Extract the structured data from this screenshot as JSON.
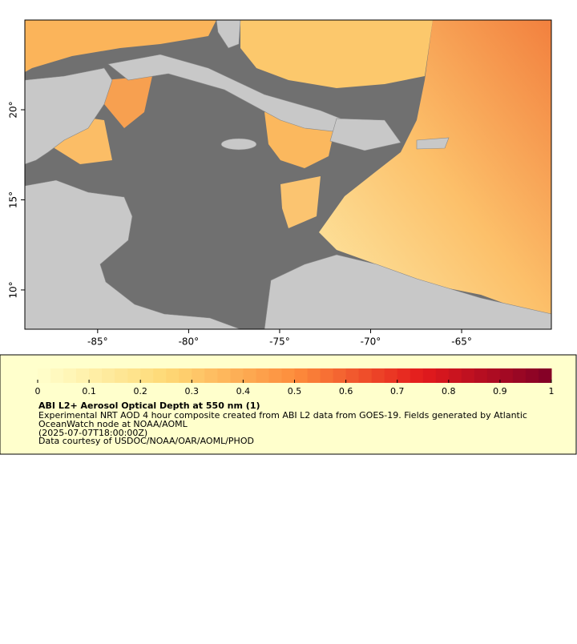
{
  "map": {
    "xlim": [
      -89,
      -60.07
    ],
    "ylim": [
      7.82,
      24.98
    ],
    "xticks": [
      {
        "value": -85,
        "label": "-85°"
      },
      {
        "value": -80,
        "label": "-80°"
      },
      {
        "value": -75,
        "label": "-75°"
      },
      {
        "value": -70,
        "label": "-70°"
      },
      {
        "value": -65,
        "label": "-65°"
      }
    ],
    "yticks": [
      {
        "value": 10,
        "label": "10°"
      },
      {
        "value": 15,
        "label": "15°"
      },
      {
        "value": 20,
        "label": "20°"
      }
    ]
  },
  "colorbar": {
    "lim": [
      0,
      1
    ],
    "ticks": [
      0,
      0.1,
      0.2,
      0.3,
      0.4,
      0.5,
      0.6,
      0.7,
      0.8,
      0.9,
      1
    ]
  },
  "legend": {
    "title": "ABI L2+ Aerosol Optical Depth at 550 nm (1)",
    "lines": [
      "Experimental NRT AOD 4 hour composite created from ABI L2 data from GOES-19. Fields generated by Atlantic",
      "OceanWatch node at NOAA/AOML",
      "(2025-07-07T18:00:00Z)",
      "Data courtesy of USDOC/NOAA/OAR/AOML/PHOD"
    ]
  }
}
